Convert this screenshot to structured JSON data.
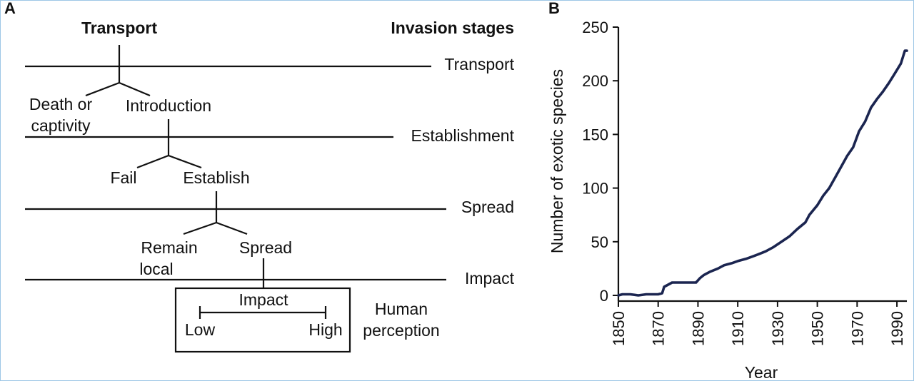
{
  "panel_a": {
    "panel_label": "A",
    "header_left": "Transport",
    "header_right": "Invasion stages",
    "stages": [
      "Transport",
      "Establishment",
      "Spread",
      "Impact"
    ],
    "branch1": {
      "left_line1": "Death or",
      "left_line2": "captivity",
      "right": "Introduction"
    },
    "branch2": {
      "left": "Fail",
      "right": "Establish"
    },
    "branch3": {
      "left_line1": "Remain",
      "left_line2": "local",
      "right": "Spread"
    },
    "impact_box": {
      "title": "Impact",
      "low": "Low",
      "high": "High"
    },
    "side_label": {
      "line1": "Human",
      "line2": "perception"
    }
  },
  "panel_b": {
    "panel_label": "B"
  },
  "chart_data": {
    "type": "line",
    "xlabel": "Year",
    "ylabel": "Number of exotic species",
    "xlim": [
      1850,
      1995
    ],
    "ylim": [
      0,
      250
    ],
    "x_ticks": [
      1850,
      1870,
      1890,
      1910,
      1930,
      1950,
      1970,
      1990
    ],
    "y_ticks": [
      0,
      50,
      100,
      150,
      200,
      250
    ],
    "line_color": "#1b2550",
    "series": [
      {
        "values": [
          [
            1850,
            0
          ],
          [
            1852,
            1
          ],
          [
            1856,
            1
          ],
          [
            1860,
            0
          ],
          [
            1864,
            1
          ],
          [
            1870,
            1
          ],
          [
            1872,
            2
          ],
          [
            1873,
            8
          ],
          [
            1875,
            10
          ],
          [
            1877,
            12
          ],
          [
            1889,
            12
          ],
          [
            1891,
            16
          ],
          [
            1893,
            19
          ],
          [
            1896,
            22
          ],
          [
            1900,
            25
          ],
          [
            1903,
            28
          ],
          [
            1907,
            30
          ],
          [
            1910,
            32
          ],
          [
            1914,
            34
          ],
          [
            1917,
            36
          ],
          [
            1920,
            38
          ],
          [
            1924,
            41
          ],
          [
            1928,
            45
          ],
          [
            1932,
            50
          ],
          [
            1936,
            55
          ],
          [
            1940,
            62
          ],
          [
            1944,
            68
          ],
          [
            1946,
            75
          ],
          [
            1950,
            84
          ],
          [
            1953,
            93
          ],
          [
            1956,
            100
          ],
          [
            1959,
            110
          ],
          [
            1962,
            120
          ],
          [
            1965,
            130
          ],
          [
            1968,
            138
          ],
          [
            1971,
            153
          ],
          [
            1974,
            162
          ],
          [
            1977,
            175
          ],
          [
            1980,
            183
          ],
          [
            1983,
            190
          ],
          [
            1986,
            198
          ],
          [
            1989,
            207
          ],
          [
            1992,
            216
          ],
          [
            1994,
            228
          ],
          [
            1995,
            228
          ]
        ]
      }
    ]
  }
}
